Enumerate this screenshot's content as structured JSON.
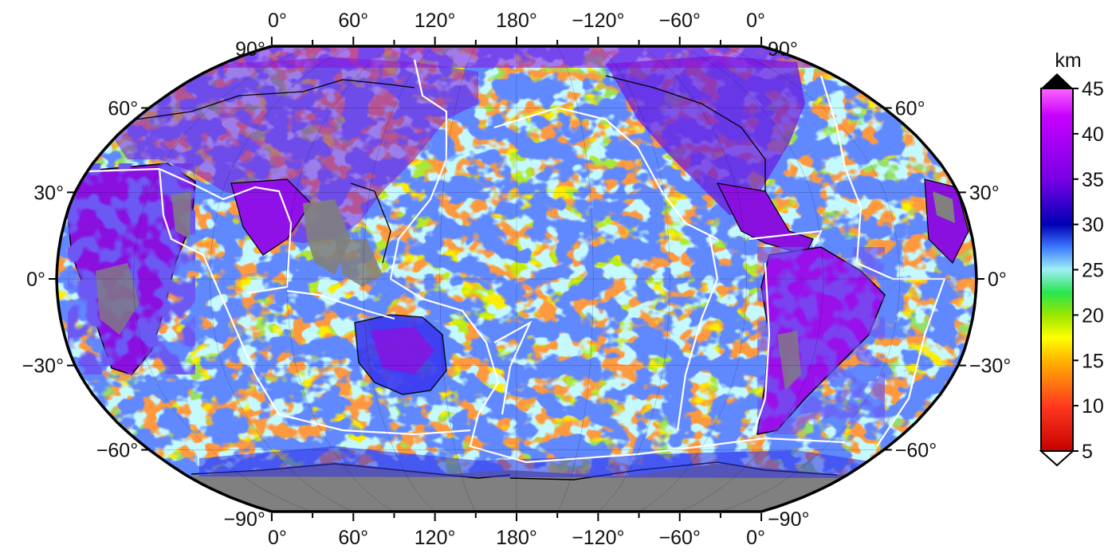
{
  "map": {
    "projection": "Robinson",
    "central_meridian": "180°",
    "graticule_step_deg": 30,
    "top_lon_labels": [
      "0°",
      "60°",
      "120°",
      "180°",
      "−120°",
      "−60°",
      "0°"
    ],
    "bottom_lon_labels": [
      "0°",
      "60°",
      "120°",
      "180°",
      "−120°",
      "−60°",
      "0°"
    ],
    "left_lat_labels": [
      "90°",
      "60°",
      "30°",
      "0°",
      "−30°",
      "−60°",
      "−90°"
    ],
    "right_lat_labels": [
      "90°",
      "60°",
      "30°",
      "0°",
      "−30°",
      "−60°",
      "−90°"
    ],
    "layers": {
      "coastlines_color": "#000000",
      "plate_boundaries_color": "#ffffff",
      "no_data_color": "#808080"
    }
  },
  "colorbar": {
    "unit": "km",
    "min": 5,
    "max": 45,
    "tick_labels": [
      "45",
      "40",
      "35",
      "30",
      "25",
      "20",
      "15",
      "10",
      "5"
    ],
    "tick_values": [
      45,
      40,
      35,
      30,
      25,
      20,
      15,
      10,
      5
    ],
    "overflow_top_color": "#000000",
    "underflow_bottom_color": "#ffffff",
    "stops": [
      {
        "v": 5,
        "c": "#c80000"
      },
      {
        "v": 10,
        "c": "#ff3a1e"
      },
      {
        "v": 15,
        "c": "#ffb400"
      },
      {
        "v": 17.5,
        "c": "#ffff00"
      },
      {
        "v": 20,
        "c": "#9be600"
      },
      {
        "v": 22.5,
        "c": "#28e650"
      },
      {
        "v": 25,
        "c": "#9ff0f5"
      },
      {
        "v": 27.5,
        "c": "#3c78ff"
      },
      {
        "v": 30,
        "c": "#0000b4"
      },
      {
        "v": 35,
        "c": "#7800e6"
      },
      {
        "v": 42,
        "c": "#c800ff"
      },
      {
        "v": 45,
        "c": "#ff64ff"
      }
    ]
  }
}
